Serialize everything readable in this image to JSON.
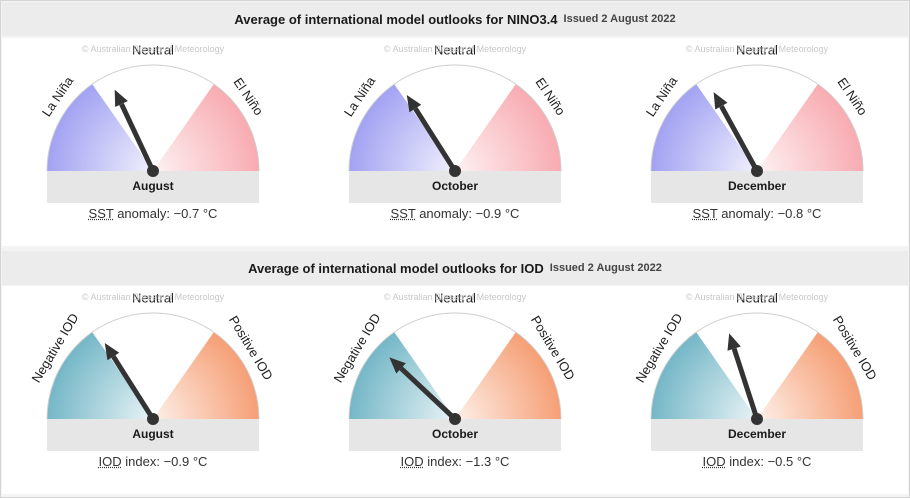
{
  "colors": {
    "la_nina": "#9d9df2",
    "el_nino": "#f7a7ad",
    "negative_iod": "#6db3c4",
    "positive_iod": "#f59a6e",
    "needle": "#333333"
  },
  "nino": {
    "title": "Average of international model outlooks for NINO3.4",
    "issued": "Issued 2 August 2022",
    "label_left": "La Niña",
    "label_top": "Neutral",
    "label_right": "El Niño",
    "watermark": "© Australian Bureau of Meteorology",
    "caption_abbr": "SST",
    "caption_text": " anomaly: ",
    "panels": [
      {
        "month": "August",
        "value": "−0.7 °C",
        "anomaly": -0.7
      },
      {
        "month": "October",
        "value": "−0.9 °C",
        "anomaly": -0.9
      },
      {
        "month": "December",
        "value": "−0.8 °C",
        "anomaly": -0.8
      }
    ]
  },
  "iod": {
    "title": "Average of international model outlooks for IOD",
    "issued": "Issued 2 August 2022",
    "label_left": "Negative IOD",
    "label_top": "Neutral",
    "label_right": "Positive IOD",
    "watermark": "© Australian Bureau of Meteorology",
    "caption_abbr": "IOD",
    "caption_text": " index: ",
    "panels": [
      {
        "month": "August",
        "value": "−0.9 °C",
        "anomaly": -0.9
      },
      {
        "month": "October",
        "value": "−1.3 °C",
        "anomaly": -1.3
      },
      {
        "month": "December",
        "value": "−0.5 °C",
        "anomaly": -0.5
      }
    ]
  }
}
